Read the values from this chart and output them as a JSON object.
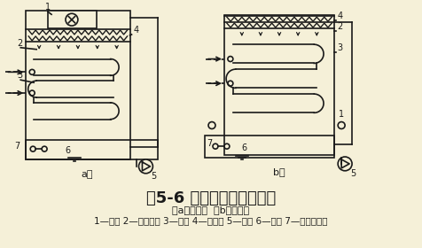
{
  "bg_color": "#f5f0d8",
  "line_color": "#1a1a1a",
  "title": "图5-6 蒸发式冷凝器示意图",
  "subtitle": "（a）吸入式  （b）压送式",
  "caption": "1—风机 2—淋水装置 3—盘管 4—挡水板 5—水泵 6—水盘 7—浮球阀补水",
  "label_a": "a）",
  "label_b": "b）",
  "title_fontsize": 13,
  "subtitle_fontsize": 8,
  "caption_fontsize": 7.5
}
